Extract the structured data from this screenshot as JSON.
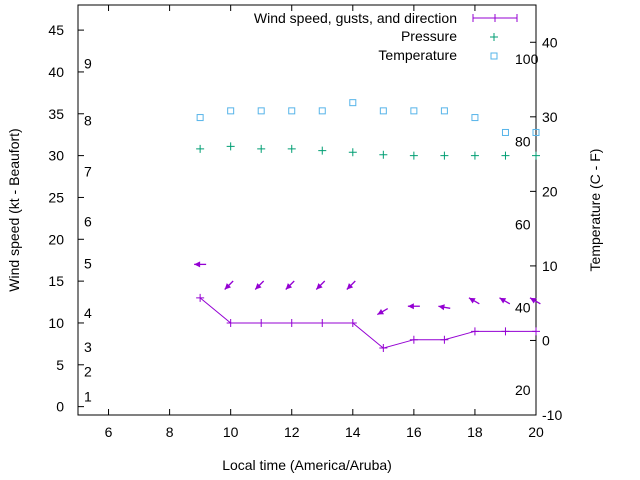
{
  "chart_data": {
    "type": "line",
    "x_title": "Local time (America/Aruba)",
    "y_title": "Wind speed (kt - Beaufort)",
    "y2_title": "Temperature (C - F)",
    "xlim": [
      5,
      20
    ],
    "ylim": [
      -1,
      48
    ],
    "y2lim": [
      -10,
      45
    ],
    "x_ticks": [
      6,
      8,
      10,
      12,
      14,
      16,
      18,
      20
    ],
    "y_ticks": [
      0,
      5,
      10,
      15,
      20,
      25,
      30,
      35,
      40,
      45
    ],
    "y2_ticks": [
      -10,
      0,
      10,
      20,
      30,
      40
    ],
    "beaufort_labels": [
      {
        "label": "1",
        "kt": 1.2
      },
      {
        "label": "2",
        "kt": 4.2
      },
      {
        "label": "3",
        "kt": 7.1
      },
      {
        "label": "4",
        "kt": 11.2
      },
      {
        "label": "5",
        "kt": 17.1
      },
      {
        "label": "6",
        "kt": 22.1
      },
      {
        "label": "7",
        "kt": 28.1
      },
      {
        "label": "8",
        "kt": 34.2
      },
      {
        "label": "9",
        "kt": 41
      }
    ],
    "fahrenheit_labels": [
      20,
      40,
      60,
      80,
      100
    ],
    "legend_position": "top-right",
    "series": [
      {
        "name": "Wind speed, gusts, and direction",
        "color": "#9400d3",
        "axis": "y",
        "x": [
          9,
          10,
          11,
          12,
          13,
          14,
          15,
          16,
          17,
          18,
          19,
          20
        ],
        "values": [
          13,
          10,
          10,
          10,
          10,
          10,
          7,
          8,
          8,
          9,
          9,
          9
        ],
        "arrow_y": [
          17,
          14,
          14,
          14,
          14,
          14,
          11,
          12,
          12,
          13,
          13,
          13
        ],
        "direction_deg": [
          90,
          135,
          135,
          135,
          135,
          135,
          120,
          90,
          80,
          60,
          60,
          60
        ]
      },
      {
        "name": "Pressure",
        "color": "#009e73",
        "axis": "y",
        "x": [
          9,
          10,
          11,
          12,
          13,
          14,
          15,
          16,
          17,
          18,
          19,
          20
        ],
        "values": [
          30.8,
          31.1,
          30.8,
          30.8,
          30.6,
          30.4,
          30.1,
          30.0,
          30.0,
          30.0,
          30.0,
          30.0
        ]
      },
      {
        "name": "Temperature",
        "color": "#56b4e9",
        "axis": "y2",
        "x": [
          9,
          10,
          11,
          12,
          13,
          14,
          15,
          16,
          17,
          18,
          19,
          20
        ],
        "values": [
          29.9,
          30.8,
          30.8,
          30.8,
          30.8,
          31.9,
          30.8,
          30.8,
          30.8,
          29.9,
          27.9,
          27.9
        ]
      }
    ]
  }
}
